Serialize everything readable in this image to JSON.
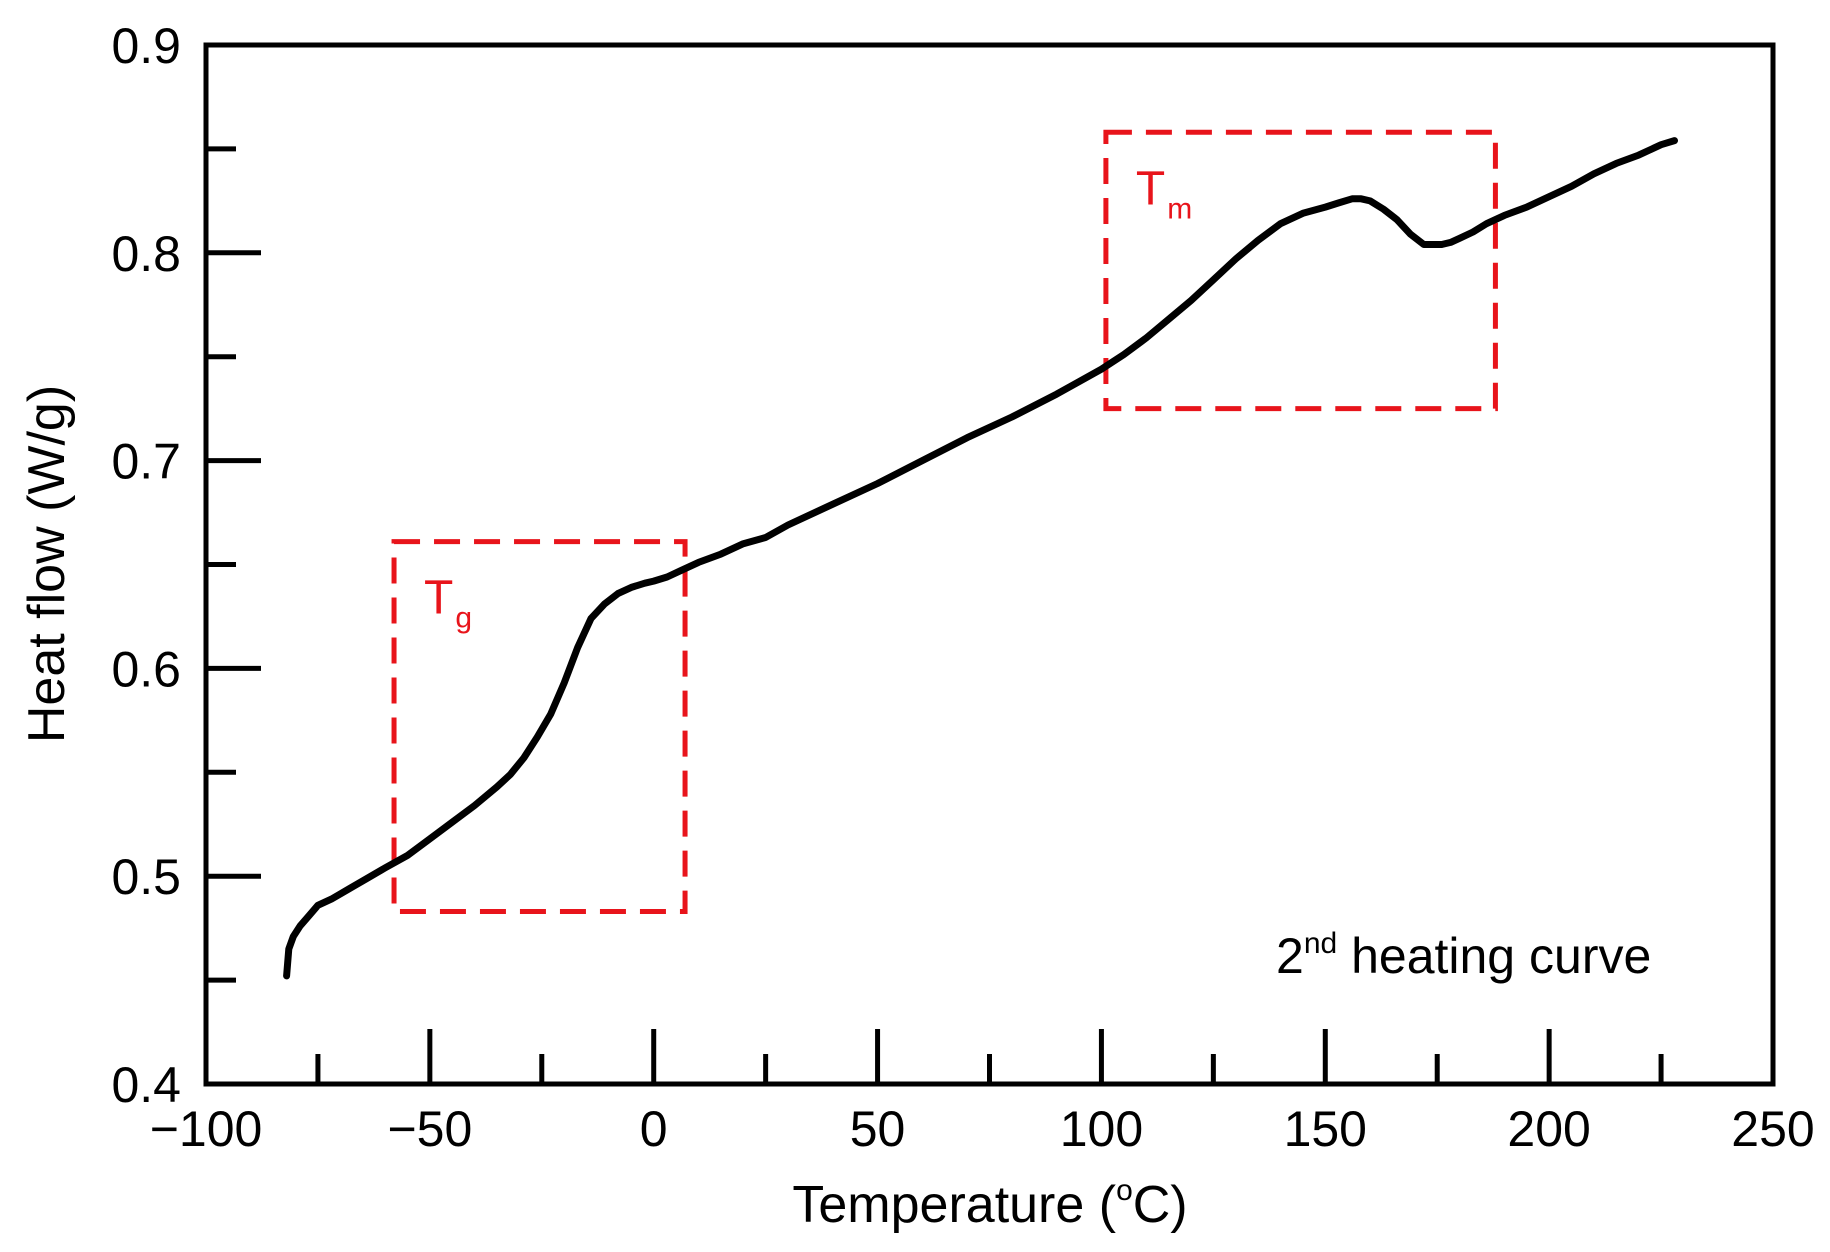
{
  "chart_data": {
    "type": "line",
    "xlabel": {
      "main": "Temperature (",
      "sup": "o",
      "end": "C)"
    },
    "ylabel": "Heat flow (W/g)",
    "xlim": [
      -100,
      250
    ],
    "ylim": [
      0.4,
      0.9
    ],
    "x_ticks": [
      -100,
      -50,
      0,
      50,
      100,
      150,
      200,
      250
    ],
    "x_tick_labels": [
      "−100",
      "−50",
      "0",
      "50",
      "100",
      "150",
      "200",
      "250"
    ],
    "x_minor_ticks": [
      -75,
      -25,
      25,
      75,
      125,
      175,
      225
    ],
    "y_ticks": [
      0.4,
      0.5,
      0.6,
      0.7,
      0.8,
      0.9
    ],
    "y_tick_labels": [
      "0.4",
      "0.5",
      "0.6",
      "0.7",
      "0.8",
      "0.9"
    ],
    "y_minor_ticks": [
      0.45,
      0.55,
      0.65,
      0.75,
      0.85
    ],
    "grid": false,
    "series": [
      {
        "color": "#000000",
        "x": [
          -82,
          -81.5,
          -80.5,
          -79,
          -77,
          -75,
          -72,
          -68,
          -64,
          -60,
          -55,
          -50,
          -45,
          -40,
          -35,
          -32,
          -29,
          -26,
          -23,
          -20,
          -17,
          -14,
          -11,
          -8,
          -5,
          -2,
          0,
          3,
          6,
          10,
          15,
          20,
          25,
          30,
          40,
          50,
          60,
          70,
          80,
          90,
          100,
          105,
          110,
          115,
          120,
          125,
          130,
          135,
          140,
          145,
          150,
          153,
          156,
          158,
          160,
          163,
          166,
          169,
          172,
          174,
          176,
          178,
          180,
          183,
          186,
          190,
          195,
          200,
          205,
          210,
          215,
          220,
          225,
          228
        ],
        "y": [
          0.452,
          0.465,
          0.471,
          0.476,
          0.481,
          0.486,
          0.489,
          0.494,
          0.499,
          0.504,
          0.51,
          0.518,
          0.526,
          0.534,
          0.543,
          0.549,
          0.557,
          0.567,
          0.578,
          0.593,
          0.61,
          0.624,
          0.631,
          0.636,
          0.639,
          0.641,
          0.642,
          0.644,
          0.647,
          0.651,
          0.655,
          0.66,
          0.663,
          0.669,
          0.679,
          0.689,
          0.7,
          0.711,
          0.721,
          0.732,
          0.744,
          0.751,
          0.759,
          0.768,
          0.777,
          0.787,
          0.797,
          0.806,
          0.814,
          0.819,
          0.822,
          0.824,
          0.826,
          0.826,
          0.825,
          0.821,
          0.816,
          0.809,
          0.804,
          0.804,
          0.804,
          0.805,
          0.807,
          0.81,
          0.814,
          0.818,
          0.822,
          0.827,
          0.832,
          0.838,
          0.843,
          0.847,
          0.852,
          0.854
        ]
      }
    ],
    "annotations": [
      {
        "label": "T",
        "sub": "g",
        "x_range": [
          -58,
          7
        ],
        "y_range": [
          0.483,
          0.661
        ]
      },
      {
        "label": "T",
        "sub": "m",
        "x_range": [
          101,
          188
        ],
        "y_range": [
          0.725,
          0.858
        ]
      }
    ],
    "note": {
      "pre": "2",
      "sup": "nd",
      "post": " heating curve"
    },
    "annotation_color": "#e8141b"
  }
}
